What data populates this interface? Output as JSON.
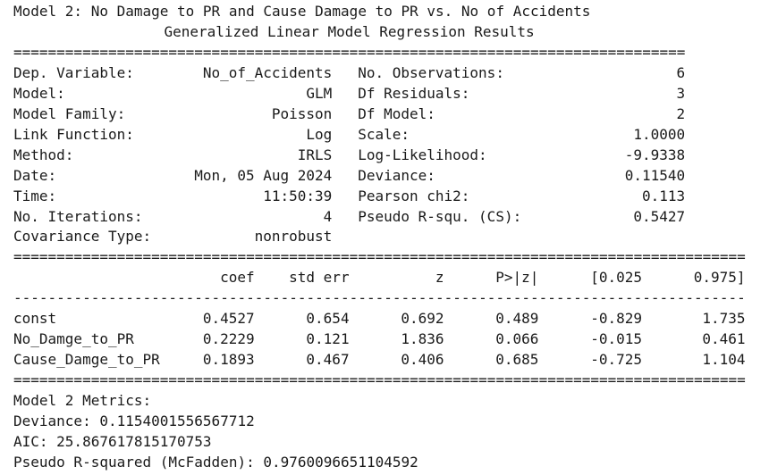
{
  "title": "Model 2: No Damage to PR and Cause Damage to PR vs. No of Accidents",
  "subtitle": "Generalized Linear Model Regression Results",
  "rules": [
    "==============================================================================",
    "=====================================================================================",
    "-------------------------------------------------------------------------------------",
    "====================================================================================="
  ],
  "summary": {
    "rows": [
      [
        "Dep. Variable:",
        "No_of_Accidents",
        "No. Observations:",
        "6"
      ],
      [
        "Model:",
        "GLM",
        "Df Residuals:",
        "3"
      ],
      [
        "Model Family:",
        "Poisson",
        "Df Model:",
        "2"
      ],
      [
        "Link Function:",
        "Log",
        "Scale:",
        "1.0000"
      ],
      [
        "Method:",
        "IRLS",
        "Log-Likelihood:",
        "-9.9338"
      ],
      [
        "Date:",
        "Mon, 05 Aug 2024",
        "Deviance:",
        "0.11540"
      ],
      [
        "Time:",
        "11:50:39",
        "Pearson chi2:",
        "0.113"
      ],
      [
        "No. Iterations:",
        "4",
        "Pseudo R-squ. (CS):",
        "0.5427"
      ],
      [
        "Covariance Type:",
        "nonrobust"
      ]
    ]
  },
  "coefficients": {
    "header": [
      "coef",
      "std err",
      "z",
      "P>|z|",
      "[0.025",
      "0.975]"
    ],
    "rows": [
      [
        "const",
        "0.4527",
        "0.654",
        "0.692",
        "0.489",
        "-0.829",
        "1.735"
      ],
      [
        "No_Damge_to_PR",
        "0.2229",
        "0.121",
        "1.836",
        "0.066",
        "-0.015",
        "0.461"
      ],
      [
        "Cause_Damge_to_PR",
        "0.1893",
        "0.467",
        "0.406",
        "0.685",
        "-0.725",
        "1.104"
      ]
    ]
  },
  "metrics": {
    "heading": "Model 2 Metrics:",
    "lines": [
      "Deviance: 0.1154001556567712",
      "AIC: 25.867617815170753",
      "Pseudo R-squared (McFadden): 0.9760096651104592"
    ]
  }
}
